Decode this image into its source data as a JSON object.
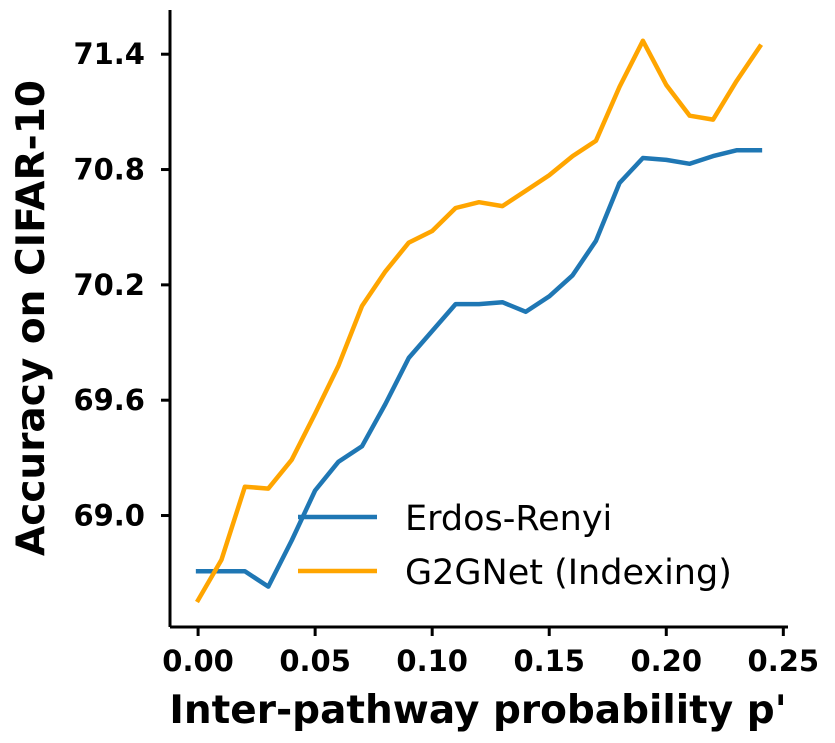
{
  "chart_data": {
    "type": "line",
    "title": "",
    "xlabel": "Inter-pathway probability p'",
    "ylabel": "Accuracy on CIFAR-10",
    "xlim": [
      -0.012,
      0.252
    ],
    "ylim": [
      68.42,
      71.63
    ],
    "xticks": [
      "0.00",
      "0.05",
      "0.10",
      "0.15",
      "0.20",
      "0.25"
    ],
    "xtick_values": [
      0.0,
      0.05,
      0.1,
      0.15,
      0.2,
      0.25
    ],
    "yticks": [
      "69.0",
      "69.6",
      "70.2",
      "70.8",
      "71.4"
    ],
    "ytick_values": [
      69.0,
      69.6,
      70.2,
      70.8,
      71.4
    ],
    "grid": false,
    "legend_position": "lower-right",
    "x": [
      0.0,
      0.01,
      0.02,
      0.03,
      0.04,
      0.05,
      0.06,
      0.07,
      0.08,
      0.09,
      0.1,
      0.11,
      0.12,
      0.13,
      0.14,
      0.15,
      0.16,
      0.17,
      0.18,
      0.19,
      0.2,
      0.21,
      0.22,
      0.23,
      0.24
    ],
    "series": [
      {
        "name": "Erdos-Renyi",
        "color": "#1f77b4",
        "values": [
          68.71,
          68.71,
          68.71,
          68.63,
          68.87,
          69.13,
          69.28,
          69.36,
          69.58,
          69.82,
          69.96,
          70.1,
          70.1,
          70.11,
          70.06,
          70.14,
          70.25,
          70.43,
          70.73,
          70.86,
          70.85,
          70.83,
          70.87,
          70.9,
          70.9
        ]
      },
      {
        "name": "G2GNet (Indexing)",
        "color": "#ffa500",
        "values": [
          68.56,
          68.77,
          69.15,
          69.14,
          69.29,
          69.53,
          69.78,
          70.09,
          70.27,
          70.42,
          70.48,
          70.6,
          70.63,
          70.61,
          70.69,
          70.77,
          70.87,
          70.95,
          71.23,
          71.47,
          71.24,
          71.08,
          71.06,
          71.26,
          71.44
        ]
      }
    ]
  }
}
